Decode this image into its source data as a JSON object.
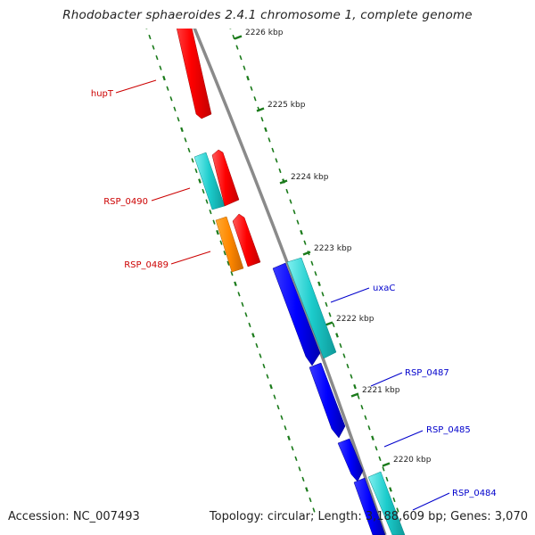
{
  "title": "Rhodobacter sphaeroides 2.4.1 chromosome 1, complete genome",
  "footer": {
    "accession": "Accession: NC_007493",
    "summary": "Topology: circular; Length: 3,188,609 bp; Genes: 3,070"
  },
  "ticks": [
    "2226 kbp",
    "2225 kbp",
    "2224 kbp",
    "2223 kbp",
    "2222 kbp",
    "2221 kbp",
    "2220 kbp"
  ],
  "gene_labels": [
    {
      "name": "hupT",
      "color": "#cc0000"
    },
    {
      "name": "RSP_0490",
      "color": "#cc0000"
    },
    {
      "name": "RSP_0489",
      "color": "#cc0000"
    },
    {
      "name": "uxaC",
      "color": "#0000cc"
    },
    {
      "name": "RSP_0487",
      "color": "#0000cc"
    },
    {
      "name": "RSP_0485",
      "color": "#0000cc"
    },
    {
      "name": "RSP_0484",
      "color": "#0000cc"
    }
  ],
  "colors": {
    "reverse_gene": "#ff0000",
    "forward_gene": "#0000ff",
    "cds": "#00cccc",
    "other_feature": "#ff8800",
    "backbone": "#888888",
    "tick": "#1a7a1a",
    "reverse_label": "#cc0000",
    "forward_label": "#0000cc"
  }
}
